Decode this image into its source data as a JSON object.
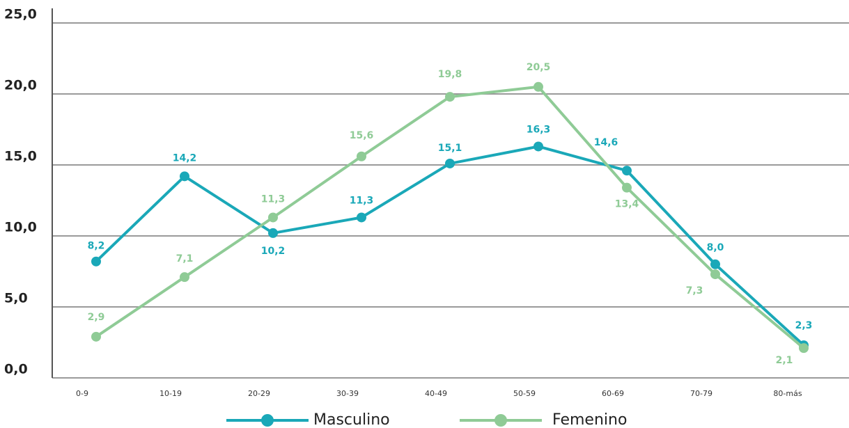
{
  "chart_data": {
    "type": "line",
    "categories": [
      "0-9",
      "10-19",
      "20-29",
      "30-39",
      "40-49",
      "50-59",
      "60-69",
      "70-79",
      "80-más"
    ],
    "series": [
      {
        "name": "Masculino",
        "color": "#1aa8b8",
        "values": [
          8.2,
          14.2,
          10.2,
          11.3,
          15.1,
          16.3,
          14.6,
          8.0,
          2.3
        ],
        "value_labels": [
          "8,2",
          "14,2",
          "10,2",
          "11,3",
          "15,1",
          "16,3",
          "14,6",
          "8,0",
          "2,3"
        ]
      },
      {
        "name": "Femenino",
        "color": "#8fcb96",
        "values": [
          2.9,
          7.1,
          11.3,
          15.6,
          19.8,
          20.5,
          13.4,
          7.3,
          2.1
        ],
        "value_labels": [
          "2,9",
          "7,1",
          "11,3",
          "15,6",
          "19,8",
          "20,5",
          "13,4",
          "7,3",
          "2,1"
        ]
      }
    ],
    "ylim": [
      0,
      25
    ],
    "yticks": [
      {
        "value": 0,
        "label": "0,0"
      },
      {
        "value": 5,
        "label": "5,0"
      },
      {
        "value": 10,
        "label": "10,0"
      },
      {
        "value": 15,
        "label": "15,0"
      },
      {
        "value": 20,
        "label": "20,0"
      },
      {
        "value": 25,
        "label": "25,0"
      }
    ],
    "grid": true
  }
}
